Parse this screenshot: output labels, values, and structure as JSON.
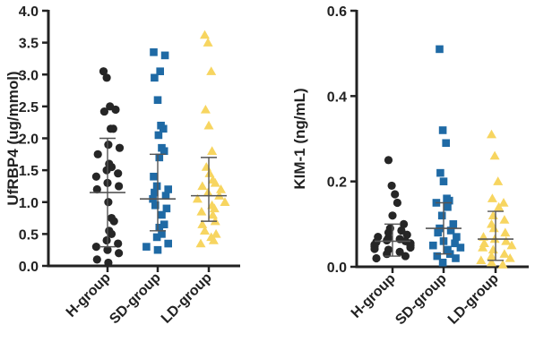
{
  "chart_data": [
    {
      "type": "scatter",
      "subtype": "dot-plot-with-mean-sd",
      "title": "",
      "xlabel": "",
      "ylabel": "UfRBP4 (ug/mmol)",
      "ylim": [
        0,
        4.0
      ],
      "yticks": [
        "0.0",
        "0.5",
        "1.0",
        "1.5",
        "2.0",
        "2.5",
        "3.0",
        "3.5",
        "4.0"
      ],
      "grid": false,
      "categories": [
        "H-group",
        "SD-group",
        "LD-group"
      ],
      "series": [
        {
          "color": "#262626",
          "marker": "circle",
          "mean": 1.15,
          "sd_low": 0.3,
          "sd_high": 2.0,
          "values": [
            3.05,
            2.95,
            2.5,
            2.42,
            2.45,
            2.15,
            2.15,
            1.9,
            1.85,
            1.75,
            1.6,
            1.55,
            1.5,
            1.45,
            1.4,
            1.3,
            1.25,
            1.2,
            1.0,
            0.75,
            0.7,
            0.55,
            0.5,
            0.4,
            0.35,
            0.3,
            0.25,
            0.2,
            0.1,
            0.05
          ]
        },
        {
          "color": "#1f6aa5",
          "marker": "square",
          "mean": 1.05,
          "sd_low": 0.55,
          "sd_high": 1.75,
          "values": [
            3.35,
            3.3,
            3.05,
            2.95,
            2.6,
            2.2,
            2.15,
            2.05,
            1.85,
            1.8,
            1.7,
            1.4,
            1.25,
            1.2,
            1.15,
            1.1,
            1.05,
            0.95,
            0.9,
            0.8,
            0.65,
            0.6,
            0.5,
            0.45,
            0.35,
            0.3,
            0.25
          ]
        },
        {
          "color": "#f7d560",
          "marker": "triangle",
          "mean": 1.1,
          "sd_low": 0.7,
          "sd_high": 1.7,
          "values": [
            3.62,
            3.5,
            3.05,
            2.45,
            2.2,
            1.8,
            1.55,
            1.45,
            1.35,
            1.3,
            1.25,
            1.2,
            1.15,
            1.1,
            1.05,
            1.0,
            0.95,
            0.9,
            0.85,
            0.8,
            0.7,
            0.65,
            0.55,
            0.5,
            0.45,
            0.4,
            0.35
          ]
        }
      ]
    },
    {
      "type": "scatter",
      "subtype": "dot-plot-with-mean-sd",
      "title": "",
      "xlabel": "",
      "ylabel": "KIM-1 (ng/mL)",
      "ylim": [
        0,
        0.6
      ],
      "yticks": [
        "0.0",
        "0.2",
        "0.4",
        "0.6"
      ],
      "grid": false,
      "categories": [
        "H-group",
        "SD-group",
        "LD-group"
      ],
      "series": [
        {
          "color": "#262626",
          "marker": "circle",
          "mean": 0.06,
          "sd_low": 0.025,
          "sd_high": 0.1,
          "values": [
            0.25,
            0.19,
            0.17,
            0.15,
            0.12,
            0.1,
            0.09,
            0.085,
            0.08,
            0.075,
            0.07,
            0.068,
            0.065,
            0.062,
            0.06,
            0.058,
            0.055,
            0.052,
            0.05,
            0.048,
            0.045,
            0.042,
            0.04,
            0.035,
            0.03,
            0.025,
            0.02
          ]
        },
        {
          "color": "#1f6aa5",
          "marker": "square",
          "mean": 0.09,
          "sd_low": 0.03,
          "sd_high": 0.15,
          "values": [
            0.51,
            0.32,
            0.29,
            0.22,
            0.2,
            0.16,
            0.155,
            0.15,
            0.14,
            0.12,
            0.1,
            0.09,
            0.085,
            0.08,
            0.07,
            0.06,
            0.055,
            0.05,
            0.045,
            0.04,
            0.03,
            0.025,
            0.02,
            0.01
          ]
        },
        {
          "color": "#f7d560",
          "marker": "triangle",
          "mean": 0.065,
          "sd_low": 0.015,
          "sd_high": 0.13,
          "values": [
            0.31,
            0.26,
            0.2,
            0.16,
            0.15,
            0.14,
            0.12,
            0.11,
            0.1,
            0.09,
            0.08,
            0.07,
            0.065,
            0.06,
            0.055,
            0.05,
            0.045,
            0.04,
            0.03,
            0.025,
            0.02,
            0.015,
            0.01,
            0.005
          ]
        }
      ]
    }
  ]
}
